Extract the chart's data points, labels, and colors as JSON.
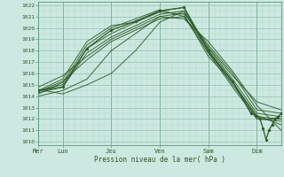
{
  "title": "",
  "xlabel": "Pression niveau de la mer( hPa )",
  "ylim": [
    1010,
    1022
  ],
  "yticks": [
    1010,
    1011,
    1012,
    1013,
    1014,
    1015,
    1016,
    1017,
    1018,
    1019,
    1020,
    1021,
    1022
  ],
  "day_labels": [
    "Mer",
    "Lun",
    "Jeu",
    "Ven",
    "Sam",
    "Dim"
  ],
  "day_positions": [
    0,
    24,
    72,
    120,
    168,
    216
  ],
  "xlim": [
    0,
    240
  ],
  "bg_color": "#cce8e0",
  "grid_minor_color": "#b0d8cc",
  "grid_major_color": "#90c0b0",
  "line_color": "#2d5a27",
  "lines": [
    [
      0,
      1014.5,
      24,
      1015.0,
      48,
      1018.2,
      72,
      1019.5,
      96,
      1020.5,
      120,
      1021.5,
      144,
      1021.8,
      168,
      1018.0,
      192,
      1015.0,
      216,
      1012.2,
      240,
      1012.0
    ],
    [
      0,
      1014.3,
      24,
      1014.8,
      48,
      1017.8,
      72,
      1019.2,
      96,
      1020.2,
      120,
      1021.2,
      144,
      1021.5,
      168,
      1017.8,
      192,
      1014.8,
      216,
      1012.0,
      240,
      1011.8
    ],
    [
      0,
      1014.2,
      24,
      1015.2,
      48,
      1018.5,
      72,
      1020.0,
      96,
      1020.8,
      120,
      1021.6,
      144,
      1021.0,
      168,
      1018.2,
      192,
      1015.5,
      216,
      1012.5,
      240,
      1012.2
    ],
    [
      0,
      1014.0,
      24,
      1014.5,
      48,
      1015.5,
      72,
      1018.0,
      96,
      1019.5,
      120,
      1021.0,
      144,
      1021.3,
      168,
      1018.5,
      192,
      1016.0,
      216,
      1012.8,
      240,
      1012.5
    ],
    [
      0,
      1014.5,
      24,
      1015.5,
      48,
      1018.8,
      72,
      1020.2,
      96,
      1020.5,
      120,
      1021.4,
      144,
      1021.2,
      168,
      1017.5,
      192,
      1015.2,
      216,
      1012.3,
      240,
      1011.5
    ],
    [
      0,
      1014.8,
      24,
      1015.8,
      48,
      1017.5,
      72,
      1019.0,
      96,
      1020.0,
      120,
      1021.0,
      144,
      1020.8,
      168,
      1018.8,
      192,
      1016.2,
      216,
      1013.2,
      240,
      1011.0
    ],
    [
      0,
      1014.6,
      24,
      1014.2,
      48,
      1015.0,
      72,
      1016.0,
      96,
      1018.0,
      120,
      1020.5,
      144,
      1021.5,
      168,
      1018.3,
      192,
      1015.8,
      216,
      1013.5,
      240,
      1012.8
    ],
    [
      0,
      1014.4,
      24,
      1015.3,
      48,
      1017.2,
      72,
      1018.8,
      96,
      1019.8,
      120,
      1020.8,
      144,
      1021.0,
      168,
      1017.8,
      192,
      1015.3,
      216,
      1012.0,
      240,
      1012.0
    ]
  ],
  "marker_line": [
    0,
    1014.5,
    24,
    1014.8,
    48,
    1018.2,
    72,
    1019.8,
    96,
    1020.6,
    120,
    1021.5,
    144,
    1021.8,
    168,
    1018.0,
    192,
    1015.3,
    210,
    1012.5,
    216,
    1012.3,
    219,
    1012.0,
    222,
    1011.2,
    225,
    1010.2,
    228,
    1011.0,
    231,
    1011.5,
    234,
    1012.0,
    237,
    1012.2,
    240,
    1012.5
  ]
}
